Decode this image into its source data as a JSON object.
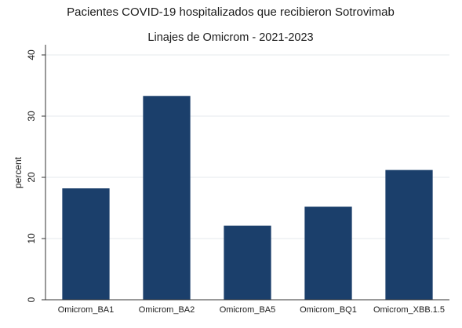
{
  "chart_data": {
    "type": "bar",
    "title": "Pacientes COVID-19 hospitalizados que recibieron Sotrovimab",
    "subtitle": "Linajes de Omicrom - 2021-2023",
    "xlabel": "",
    "ylabel": "percent",
    "categories": [
      "Omicrom_BA1",
      "Omicrom_BA2",
      "Omicrom_BA5",
      "Omicrom_BQ1",
      "Omicrom_XBB.1.5"
    ],
    "values": [
      18.2,
      33.3,
      12.1,
      15.2,
      21.2
    ],
    "ylim": [
      0,
      40
    ],
    "yticks": [
      "0",
      "10",
      "20",
      "30",
      "40"
    ],
    "grid": true,
    "bar_color": "#1b3f6b",
    "grid_color": "#e6e9ee"
  }
}
